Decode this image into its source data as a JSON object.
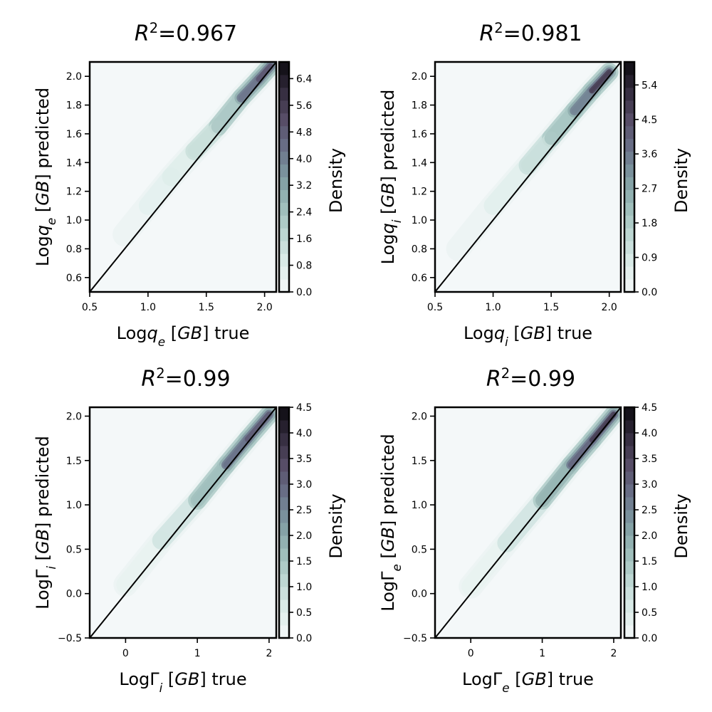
{
  "colors": {
    "background": "#f4f8f9",
    "diagonal": "#000000",
    "colormap": [
      "#f4f8f9",
      "#dcece9",
      "#bdd7d3",
      "#9cbcb9",
      "#7e9aa1",
      "#6a7189",
      "#574d67",
      "#332b3d",
      "#0c0b10"
    ]
  },
  "chart_data": [
    {
      "type": "heatmap",
      "title": "R²=0.967",
      "xlabel": "Logq_e [GB] true",
      "ylabel": "Logq_e [GB] predicted",
      "xlim": [
        0.5,
        2.1
      ],
      "ylim": [
        0.5,
        2.1
      ],
      "xticks": [
        "0.5",
        "1.0",
        "1.5",
        "2.0"
      ],
      "yticks": [
        "0.6",
        "0.8",
        "1.0",
        "1.2",
        "1.4",
        "1.6",
        "1.8",
        "2.0"
      ],
      "colorbar": {
        "label": "Density",
        "range": [
          0,
          6.9
        ],
        "ticks": [
          "0.0",
          "0.8",
          "1.6",
          "2.4",
          "3.2",
          "4.0",
          "4.8",
          "5.6",
          "6.4"
        ]
      },
      "identity_line": true,
      "density_ridge": [
        {
          "x": 0.8,
          "y": 0.9,
          "d": 0.3
        },
        {
          "x": 1.0,
          "y": 1.1,
          "d": 0.6
        },
        {
          "x": 1.2,
          "y": 1.3,
          "d": 0.8
        },
        {
          "x": 1.4,
          "y": 1.48,
          "d": 1.4
        },
        {
          "x": 1.6,
          "y": 1.65,
          "d": 2.2
        },
        {
          "x": 1.8,
          "y": 1.85,
          "d": 4.2
        },
        {
          "x": 1.95,
          "y": 1.98,
          "d": 6.4
        },
        {
          "x": 2.05,
          "y": 2.07,
          "d": 5.0
        }
      ]
    },
    {
      "type": "heatmap",
      "title": "R²=0.981",
      "xlabel": "Logq_i [GB] true",
      "ylabel": "Logq_i [GB] predicted",
      "xlim": [
        0.5,
        2.1
      ],
      "ylim": [
        0.5,
        2.1
      ],
      "xticks": [
        "0.5",
        "1.0",
        "1.5",
        "2.0"
      ],
      "yticks": [
        "0.6",
        "0.8",
        "1.0",
        "1.2",
        "1.4",
        "1.6",
        "1.8",
        "2.0"
      ],
      "colorbar": {
        "label": "Density",
        "range": [
          0,
          6.0
        ],
        "ticks": [
          "0.0",
          "0.9",
          "1.8",
          "2.7",
          "3.6",
          "4.5",
          "5.4"
        ]
      },
      "identity_line": true,
      "density_ridge": [
        {
          "x": 0.7,
          "y": 0.8,
          "d": 0.3
        },
        {
          "x": 1.0,
          "y": 1.1,
          "d": 0.6
        },
        {
          "x": 1.3,
          "y": 1.38,
          "d": 1.2
        },
        {
          "x": 1.5,
          "y": 1.57,
          "d": 2.0
        },
        {
          "x": 1.7,
          "y": 1.76,
          "d": 3.4
        },
        {
          "x": 1.85,
          "y": 1.9,
          "d": 4.8
        },
        {
          "x": 2.0,
          "y": 2.03,
          "d": 5.4
        }
      ]
    },
    {
      "type": "heatmap",
      "title": "R²=0.99",
      "xlabel": "LogΓ_i [GB] true",
      "ylabel": "LogΓ_i [GB] predicted",
      "xlim": [
        -0.5,
        2.1
      ],
      "ylim": [
        -0.5,
        2.1
      ],
      "xticks": [
        "0",
        "1",
        "2"
      ],
      "yticks": [
        "−0.5",
        "0.0",
        "0.5",
        "1.0",
        "1.5",
        "2.0"
      ],
      "colorbar": {
        "label": "Density",
        "range": [
          0,
          4.5
        ],
        "ticks": [
          "0.0",
          "0.5",
          "1.0",
          "1.5",
          "2.0",
          "2.5",
          "3.0",
          "3.5",
          "4.0",
          "4.5"
        ]
      },
      "identity_line": true,
      "density_ridge": [
        {
          "x": 0.0,
          "y": 0.1,
          "d": 0.3
        },
        {
          "x": 0.5,
          "y": 0.6,
          "d": 0.8
        },
        {
          "x": 1.0,
          "y": 1.05,
          "d": 1.6
        },
        {
          "x": 1.4,
          "y": 1.45,
          "d": 2.8
        },
        {
          "x": 1.7,
          "y": 1.74,
          "d": 4.0
        },
        {
          "x": 2.0,
          "y": 2.02,
          "d": 3.2
        }
      ]
    },
    {
      "type": "heatmap",
      "title": "R²=0.99",
      "xlabel": "LogΓ_e [GB] true",
      "ylabel": "LogΓ_e [GB] predicted",
      "xlim": [
        -0.5,
        2.1
      ],
      "ylim": [
        -0.5,
        2.1
      ],
      "xticks": [
        "0",
        "1",
        "2"
      ],
      "yticks": [
        "−0.5",
        "0.0",
        "0.5",
        "1.0",
        "1.5",
        "2.0"
      ],
      "colorbar": {
        "label": "Density",
        "range": [
          0,
          4.5
        ],
        "ticks": [
          "0.0",
          "0.5",
          "1.0",
          "1.5",
          "2.0",
          "2.5",
          "3.0",
          "3.5",
          "4.0",
          "4.5"
        ]
      },
      "identity_line": true,
      "density_ridge": [
        {
          "x": 0.0,
          "y": 0.08,
          "d": 0.3
        },
        {
          "x": 0.5,
          "y": 0.57,
          "d": 0.8
        },
        {
          "x": 1.0,
          "y": 1.05,
          "d": 1.8
        },
        {
          "x": 1.4,
          "y": 1.45,
          "d": 3.0
        },
        {
          "x": 1.7,
          "y": 1.73,
          "d": 4.2
        },
        {
          "x": 2.0,
          "y": 2.02,
          "d": 3.6
        }
      ]
    }
  ]
}
